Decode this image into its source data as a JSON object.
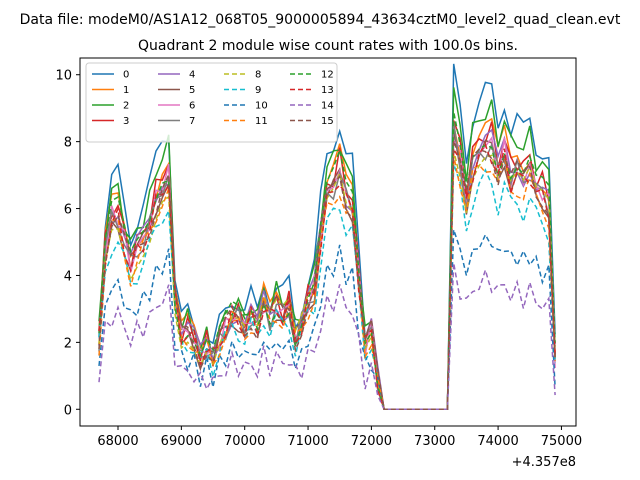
{
  "chart_data": {
    "type": "line",
    "title_line1": "Data file: modeM0/AS1A12_068T05_9000005894_43634cztM0_level2_quad_clean.evt",
    "title_line2": "Quadrant 2 module wise count rates with 100.0s bins.",
    "xlabel": "",
    "ylabel": "",
    "x_offset_label": "+4.357e8",
    "x_ticks": [
      68000,
      69000,
      70000,
      71000,
      72000,
      73000,
      74000,
      75000
    ],
    "y_ticks": [
      0,
      2,
      4,
      6,
      8,
      10
    ],
    "xlim": [
      67400,
      75230
    ],
    "ylim": [
      -0.5,
      10.5
    ],
    "grid": false,
    "legend_position": "upper-left",
    "legend_columns": 4,
    "x": [
      67700,
      67800,
      67900,
      68000,
      68100,
      68200,
      68300,
      68400,
      68500,
      68600,
      68700,
      68800,
      68900,
      69000,
      69100,
      69200,
      69300,
      69400,
      69500,
      69600,
      69700,
      69800,
      69900,
      70000,
      70100,
      70200,
      70300,
      70400,
      70500,
      70600,
      70700,
      70800,
      70900,
      71000,
      71100,
      71200,
      71300,
      71400,
      71500,
      71600,
      71700,
      71800,
      71900,
      72000,
      72100,
      72200,
      72300,
      72400,
      72500,
      72600,
      72700,
      72800,
      72900,
      73000,
      73100,
      73200,
      73300,
      73400,
      73500,
      73600,
      73700,
      73800,
      73900,
      74000,
      74100,
      74200,
      74300,
      74400,
      74500,
      74600,
      74700,
      74800,
      74900
    ],
    "base_shape": [
      0.29,
      0.66,
      0.8,
      0.81,
      0.7,
      0.6,
      0.66,
      0.71,
      0.77,
      0.87,
      0.95,
      0.97,
      0.46,
      0.31,
      0.33,
      0.29,
      0.22,
      0.27,
      0.21,
      0.29,
      0.34,
      0.39,
      0.38,
      0.34,
      0.39,
      0.33,
      0.45,
      0.38,
      0.43,
      0.4,
      0.43,
      0.29,
      0.36,
      0.45,
      0.5,
      0.72,
      0.88,
      0.93,
      1.0,
      0.88,
      0.85,
      0.55,
      0.27,
      0.33,
      0.13,
      0.0,
      0.0,
      0.0,
      0.0,
      0.0,
      0.0,
      0.0,
      0.0,
      0.0,
      0.0,
      0.0,
      1.16,
      1.04,
      0.88,
      1.02,
      1.07,
      1.1,
      1.1,
      0.99,
      1.08,
      0.97,
      1.0,
      0.96,
      1.01,
      0.92,
      0.9,
      0.86,
      0.22
    ],
    "series": [
      {
        "name": "0",
        "color": "#1f77b4",
        "style": "solid",
        "scale": 8.6
      },
      {
        "name": "1",
        "color": "#ff7f0e",
        "style": "solid",
        "scale": 7.6
      },
      {
        "name": "2",
        "color": "#2ca02c",
        "style": "solid",
        "scale": 8.1
      },
      {
        "name": "3",
        "color": "#d62728",
        "style": "solid",
        "scale": 7.5
      },
      {
        "name": "4",
        "color": "#9467bd",
        "style": "solid",
        "scale": 7.3
      },
      {
        "name": "5",
        "color": "#8c564b",
        "style": "solid",
        "scale": 7.0
      },
      {
        "name": "6",
        "color": "#e377c2",
        "style": "solid",
        "scale": 7.2
      },
      {
        "name": "7",
        "color": "#7f7f7f",
        "style": "solid",
        "scale": 7.1
      },
      {
        "name": "8",
        "color": "#bcbd22",
        "style": "dashed",
        "scale": 6.9
      },
      {
        "name": "9",
        "color": "#17becf",
        "style": "dashed",
        "scale": 6.2
      },
      {
        "name": "10",
        "color": "#1f77b4",
        "style": "dashed",
        "scale": 4.6
      },
      {
        "name": "11",
        "color": "#ff7f0e",
        "style": "dashed",
        "scale": 6.7
      },
      {
        "name": "12",
        "color": "#2ca02c",
        "style": "dashed",
        "scale": 7.4
      },
      {
        "name": "13",
        "color": "#d62728",
        "style": "dashed",
        "scale": 7.0
      },
      {
        "name": "14",
        "color": "#9467bd",
        "style": "dashed",
        "scale": 3.5
      },
      {
        "name": "15",
        "color": "#8c564b",
        "style": "dashed",
        "scale": 7.1
      }
    ]
  }
}
